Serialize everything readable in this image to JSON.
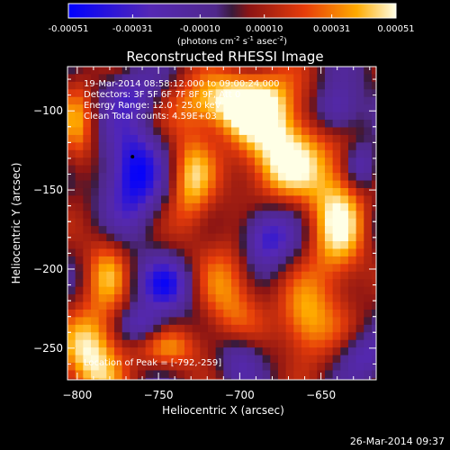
{
  "chart_data": {
    "type": "heatmap",
    "title": "Reconstructed RHESSI Image",
    "xlabel": "Heliocentric X (arcsec)",
    "ylabel": "Heliocentric Y (arcsec)",
    "xlim": [
      -806,
      -616
    ],
    "ylim": [
      -270,
      -72
    ],
    "xticks": [
      -800,
      -750,
      -700,
      -650
    ],
    "yticks": [
      -250,
      -200,
      -150,
      -100
    ],
    "colorbar": {
      "ticks": [
        "-0.00051",
        "-0.00031",
        "-0.00010",
        "0.00010",
        "0.00031",
        "0.00051"
      ],
      "range": [
        -0.00051,
        0.00051
      ],
      "units_prefix": "(photons cm",
      "units_exp1": "-2",
      "units_mid": " s",
      "units_exp2": "-1",
      "units_mid2": " asec",
      "units_exp3": "-2",
      "units_suffix": ")"
    },
    "annotations": {
      "line1": "19-Mar-2014 08:58:12.000 to 09:00:24.000",
      "line2": "Detectors: 3F 5F 6F 7F 8F 9F, Att 0",
      "line3": "Energy Range: 12.0 - 25.0 keV",
      "line4": "Clean     Total counts: 4.59E+03",
      "peak": "Location of Peak = [-792,-259]"
    },
    "peak": {
      "x": -792,
      "y": -259
    },
    "marker": {
      "x": -766,
      "y": -129
    },
    "sources": [
      {
        "x": -690,
        "y": -95,
        "w": 20,
        "h": 16,
        "amp": 0.00049
      },
      {
        "x": -675,
        "y": -130,
        "w": 18,
        "h": 20,
        "amp": 0.00051
      },
      {
        "x": -640,
        "y": -170,
        "w": 13,
        "h": 35,
        "amp": 0.00046
      },
      {
        "x": -660,
        "y": -235,
        "w": 12,
        "h": 18,
        "amp": 0.0004
      },
      {
        "x": -790,
        "y": -255,
        "w": 14,
        "h": 22,
        "amp": 0.00051
      },
      {
        "x": -782,
        "y": -200,
        "w": 10,
        "h": 18,
        "amp": 0.0003
      },
      {
        "x": -730,
        "y": -145,
        "w": 10,
        "h": 25,
        "amp": 0.00038
      },
      {
        "x": -720,
        "y": -95,
        "w": 18,
        "h": 12,
        "amp": 0.0003
      },
      {
        "x": -800,
        "y": -110,
        "w": 8,
        "h": 25,
        "amp": 0.0003
      },
      {
        "x": -705,
        "y": -215,
        "w": 14,
        "h": 30,
        "amp": 0.00034
      },
      {
        "x": -740,
        "y": -250,
        "w": 15,
        "h": 10,
        "amp": 0.00028
      },
      {
        "x": -766,
        "y": -140,
        "w": 12,
        "h": 22,
        "amp": -0.00051
      },
      {
        "x": -685,
        "y": -180,
        "w": 12,
        "h": 14,
        "amp": -0.00045
      },
      {
        "x": -640,
        "y": -100,
        "w": 10,
        "h": 12,
        "amp": -0.00038
      },
      {
        "x": -745,
        "y": -210,
        "w": 12,
        "h": 12,
        "amp": -0.00038
      },
      {
        "x": -625,
        "y": -135,
        "w": 7,
        "h": 10,
        "amp": -0.0003
      },
      {
        "x": -765,
        "y": -90,
        "w": 12,
        "h": 10,
        "amp": -0.00025
      },
      {
        "x": -700,
        "y": -255,
        "w": 10,
        "h": 12,
        "amp": -0.00032
      },
      {
        "x": -625,
        "y": -255,
        "w": 10,
        "h": 10,
        "amp": -0.00025
      },
      {
        "x": -760,
        "y": -235,
        "w": 10,
        "h": 8,
        "amp": -0.0003
      }
    ]
  },
  "footer": {
    "timestamp": "26-Mar-2014 09:37"
  }
}
